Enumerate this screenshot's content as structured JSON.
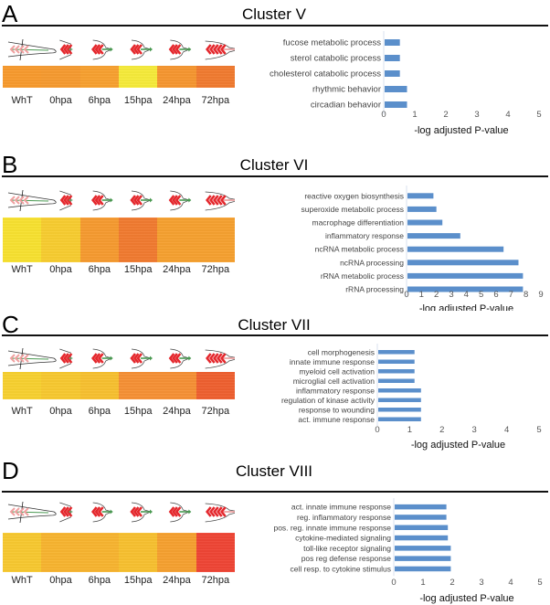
{
  "timepoints": [
    "WhT",
    "0hpa",
    "6hpa",
    "15hpa",
    "24hpa",
    "72hpa"
  ],
  "panels": [
    {
      "letter": "A",
      "title": "Cluster V",
      "heatmap_colors": [
        "#f79a2e",
        "#f59a30",
        "#f7a030",
        "#f5ea3a",
        "#f59630",
        "#f07a30"
      ]
    },
    {
      "letter": "B",
      "title": "Cluster VI",
      "heatmap_colors": [
        "#f7e030",
        "#f7cc30",
        "#f59a30",
        "#f07a30",
        "#f5a030",
        "#f5a030"
      ]
    },
    {
      "letter": "C",
      "title": "Cluster VII",
      "heatmap_colors": [
        "#f7d030",
        "#f7c830",
        "#f7c030",
        "#f59035",
        "#f59035",
        "#ee6030"
      ]
    },
    {
      "letter": "D",
      "title": "Cluster VIII",
      "heatmap_colors": [
        "#f7c830",
        "#f7b430",
        "#f7b430",
        "#f7c030",
        "#f5a030",
        "#ee4535"
      ]
    }
  ],
  "bar_color": "#5b8fcb",
  "chart_data": [
    {
      "type": "bar",
      "orientation": "horizontal",
      "panel": "A",
      "categories": [
        "fucose metabolic process",
        "sterol catabolic process",
        "cholesterol catabolic process",
        "rhythmic behavior",
        "circadian behavior"
      ],
      "values": [
        0.52,
        0.52,
        0.52,
        0.75,
        0.75
      ],
      "xlabel": "-log adjusted P-value",
      "ylabel": "",
      "xlim": [
        0,
        5
      ],
      "xticks": [
        0,
        1,
        2,
        3,
        4,
        5
      ],
      "grid": false
    },
    {
      "type": "bar",
      "orientation": "horizontal",
      "panel": "B",
      "categories": [
        "reactive oxygen biosynthesis",
        "superoxide metabolic process",
        "macrophage differentiation",
        "inflammatory response",
        "ncRNA metabolic process",
        "ncRNA processing",
        "rRNA metabolic process",
        "rRNA processing"
      ],
      "values": [
        1.8,
        2.0,
        2.4,
        3.6,
        6.5,
        7.5,
        7.8,
        7.8
      ],
      "xlabel": "-log adjusted P-value",
      "ylabel": "",
      "xlim": [
        0,
        9
      ],
      "xticks": [
        0,
        1,
        2,
        3,
        4,
        5,
        6,
        7,
        8,
        9
      ],
      "grid": false
    },
    {
      "type": "bar",
      "orientation": "horizontal",
      "panel": "C",
      "categories": [
        "cell morphogenesis",
        "innate immune response",
        "myeloid cell activation",
        "microglial cell activation",
        "inflammatory response",
        "regulation of kinase activity",
        "response to wounding",
        "act. immune response"
      ],
      "values": [
        1.15,
        1.15,
        1.15,
        1.15,
        1.35,
        1.35,
        1.35,
        1.35
      ],
      "xlabel": "-log adjusted P-value",
      "ylabel": "",
      "xlim": [
        0,
        5
      ],
      "xticks": [
        0,
        1,
        2,
        3,
        4,
        5
      ],
      "grid": false
    },
    {
      "type": "bar",
      "orientation": "horizontal",
      "panel": "D",
      "categories": [
        "act. innate immune response",
        "reg. inflammatory response",
        "pos. reg. innate immune response",
        "cytokine-mediated signaling",
        "toll-like receptor signaling",
        "pos reg defense response",
        "cell resp. to cytokine stimulus"
      ],
      "values": [
        1.8,
        1.8,
        1.85,
        1.85,
        1.95,
        1.95,
        1.95
      ],
      "xlabel": "-log adjusted P-value",
      "ylabel": "",
      "xlim": [
        0,
        5
      ],
      "xticks": [
        0,
        1,
        2,
        3,
        4,
        5
      ],
      "grid": false
    }
  ]
}
